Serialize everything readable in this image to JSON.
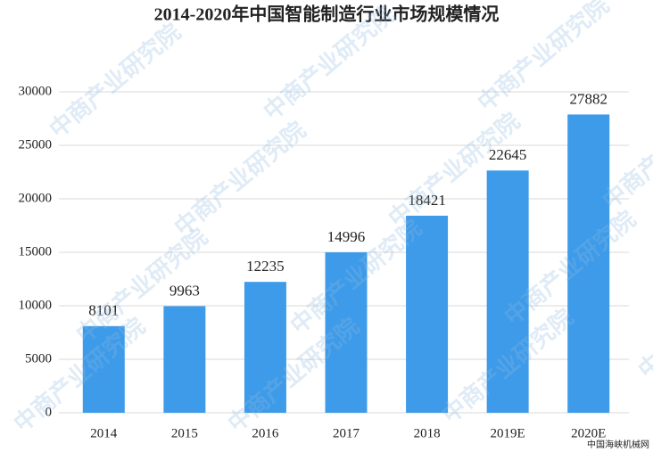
{
  "chart_data": {
    "type": "bar",
    "title": "2014-2020年中国智能制造行业市场规模情况",
    "categories": [
      "2014",
      "2015",
      "2016",
      "2017",
      "2018",
      "2019E",
      "2020E"
    ],
    "values": [
      8101,
      9963,
      12235,
      14996,
      18421,
      22645,
      27882
    ],
    "color": "#3d9be9",
    "ylim": [
      0,
      30000
    ],
    "yticks": [
      0,
      5000,
      10000,
      15000,
      20000,
      25000,
      30000
    ],
    "grid": true,
    "watermark": "中商产业研究院",
    "source": "中国海峡机械网"
  }
}
